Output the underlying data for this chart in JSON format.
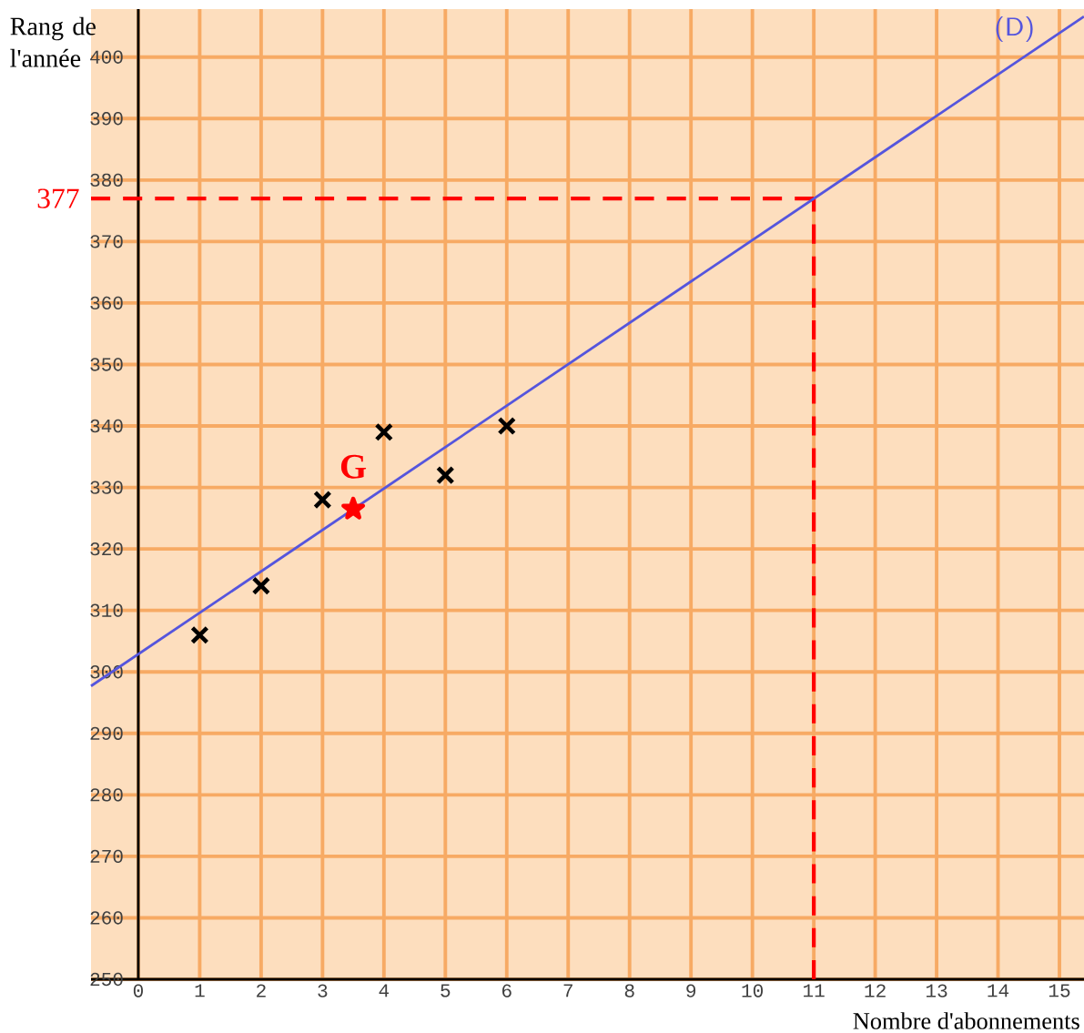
{
  "chart_data": {
    "type": "scatter",
    "xlabel": "Nombre d'abonnements",
    "ylabel": "Rang de l'année",
    "xlim": [
      -0.77,
      15.4
    ],
    "ylim": [
      250,
      407.8
    ],
    "xticks": [
      0,
      1,
      2,
      3,
      4,
      5,
      6,
      7,
      8,
      9,
      10,
      11,
      12,
      13,
      14,
      15
    ],
    "yticks": [
      250,
      260,
      270,
      280,
      290,
      300,
      310,
      320,
      330,
      340,
      350,
      360,
      370,
      380,
      390,
      400
    ],
    "grid": true,
    "series": [
      {
        "x": [
          1,
          2,
          3,
          4,
          5,
          6
        ],
        "values": [
          306,
          314,
          328,
          339,
          332,
          340
        ],
        "color": "#000000",
        "marker": "cross"
      },
      {
        "type": "scatter",
        "name": "G",
        "x": [
          3.5
        ],
        "values": [
          326.5
        ],
        "color": "#ff0000",
        "marker": "star"
      },
      {
        "type": "line",
        "name": "(D)",
        "x": [
          -0.77,
          15.4
        ],
        "values": [
          297.7,
          406.6
        ],
        "color": "#5555dd",
        "marker": "none"
      }
    ],
    "ref_lines": [
      {
        "axis": "y",
        "value": 377,
        "label": "377",
        "color": "#ff0000",
        "line_style": "dashed"
      },
      {
        "axis": "x",
        "value": 11,
        "color": "#ff0000",
        "line_style": "dashed"
      }
    ]
  }
}
